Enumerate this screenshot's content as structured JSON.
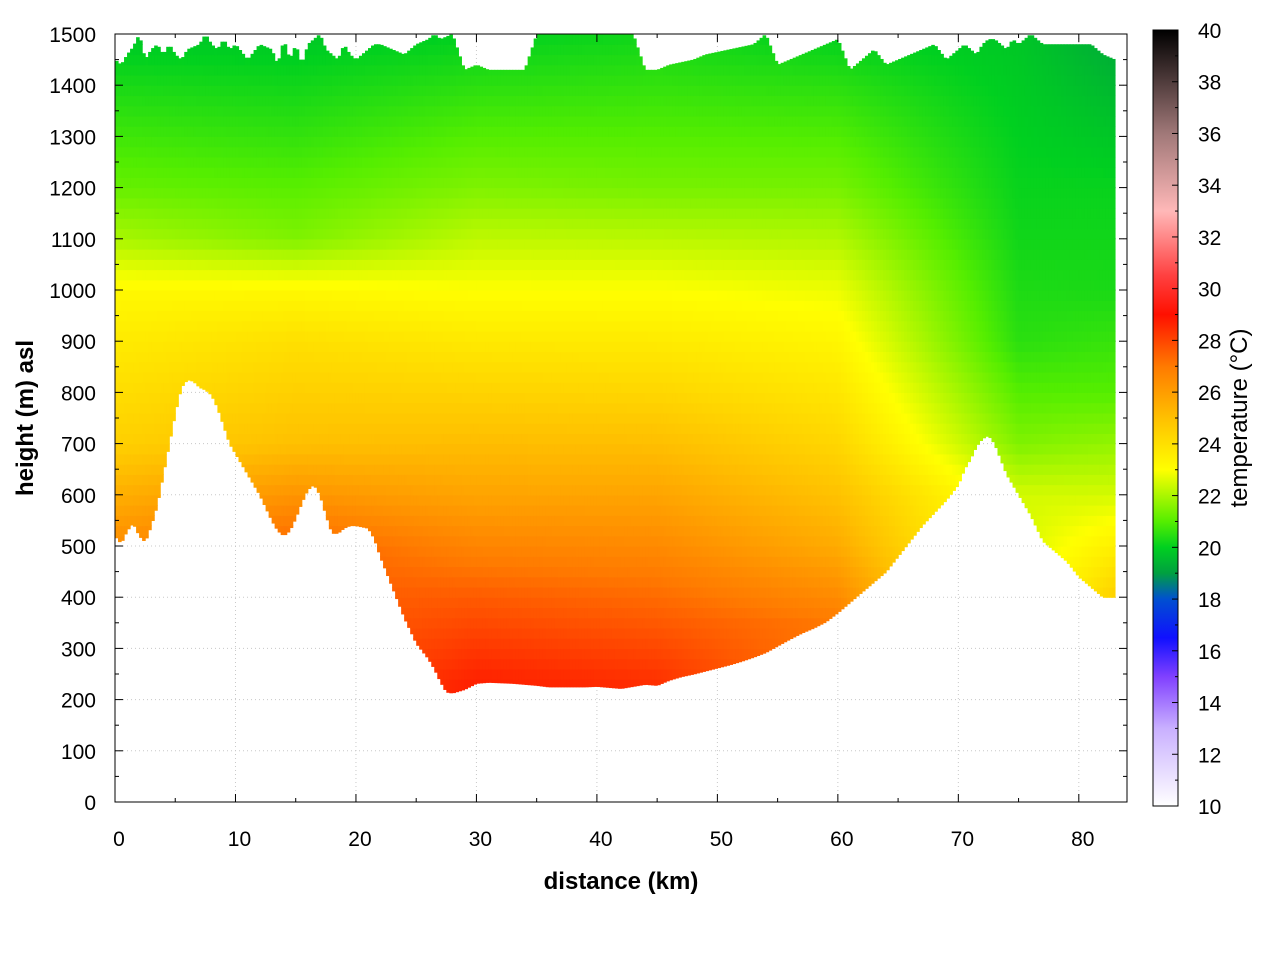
{
  "chart_data": {
    "type": "heatmap",
    "title": "",
    "xlabel": "distance (km)",
    "ylabel": "height (m) asl",
    "xlim": [
      0,
      84
    ],
    "ylim": [
      0,
      1500
    ],
    "x_ticks": [
      0,
      10,
      20,
      30,
      40,
      50,
      60,
      70,
      80
    ],
    "y_ticks": [
      0,
      100,
      200,
      300,
      400,
      500,
      600,
      700,
      800,
      900,
      1000,
      1100,
      1200,
      1300,
      1400,
      1500
    ],
    "grid": true,
    "colorbar": {
      "label": "temperature (°C)",
      "range": [
        10,
        40
      ],
      "ticks": [
        10,
        12,
        14,
        16,
        18,
        20,
        22,
        24,
        26,
        28,
        30,
        32,
        34,
        36,
        38,
        40
      ],
      "stops": [
        {
          "value": 10,
          "color": "#ffffff"
        },
        {
          "value": 13,
          "color": "#c9b0ff"
        },
        {
          "value": 15,
          "color": "#8040ff"
        },
        {
          "value": 16.5,
          "color": "#1010ff"
        },
        {
          "value": 18,
          "color": "#0050d0"
        },
        {
          "value": 19,
          "color": "#00a040"
        },
        {
          "value": 20,
          "color": "#00d020"
        },
        {
          "value": 21,
          "color": "#55ee00"
        },
        {
          "value": 23,
          "color": "#ffff00"
        },
        {
          "value": 25,
          "color": "#ffc000"
        },
        {
          "value": 27,
          "color": "#ff7a00"
        },
        {
          "value": 29,
          "color": "#ff1000"
        },
        {
          "value": 30.5,
          "color": "#ff4040"
        },
        {
          "value": 33,
          "color": "#ffb8b8"
        },
        {
          "value": 36,
          "color": "#a07878"
        },
        {
          "value": 40,
          "color": "#000000"
        }
      ]
    },
    "terrain_profile": {
      "distance_km": [
        0,
        0.5,
        1,
        1.5,
        2,
        2.5,
        3,
        3.5,
        4,
        4.5,
        5,
        5.5,
        6,
        6.5,
        7,
        7.5,
        8,
        8.5,
        9,
        9.5,
        10,
        11,
        12,
        13,
        13.5,
        14,
        14.5,
        15,
        15.5,
        16,
        16.5,
        17,
        17.5,
        18,
        18.5,
        19,
        19.5,
        20,
        21,
        21.5,
        22,
        23,
        24,
        25,
        26,
        26.5,
        27,
        27.5,
        28,
        29,
        30,
        31,
        32,
        33,
        34,
        35,
        36,
        37,
        38,
        39,
        40,
        41,
        42,
        43,
        44,
        45,
        46,
        47,
        48,
        49,
        50,
        51,
        52,
        53,
        54,
        55,
        56,
        57,
        58,
        59,
        60,
        61,
        62,
        63,
        64,
        65,
        66,
        67,
        68,
        69,
        70,
        70.5,
        71,
        71.5,
        72,
        72.5,
        73,
        73.5,
        74,
        74.5,
        75,
        76,
        77,
        78,
        79,
        80,
        81,
        82,
        83
      ],
      "height_m": [
        520,
        505,
        530,
        545,
        520,
        508,
        540,
        580,
        640,
        700,
        760,
        810,
        825,
        822,
        810,
        805,
        795,
        770,
        735,
        700,
        680,
        640,
        600,
        550,
        530,
        520,
        530,
        555,
        585,
        610,
        620,
        600,
        560,
        525,
        525,
        535,
        540,
        540,
        535,
        515,
        480,
        420,
        360,
        310,
        280,
        260,
        235,
        215,
        213,
        220,
        232,
        234,
        233,
        232,
        230,
        228,
        225,
        225,
        225,
        225,
        226,
        224,
        222,
        226,
        230,
        228,
        238,
        245,
        250,
        256,
        262,
        268,
        275,
        283,
        292,
        305,
        318,
        330,
        340,
        352,
        370,
        390,
        410,
        430,
        450,
        480,
        510,
        540,
        565,
        590,
        620,
        650,
        670,
        695,
        710,
        716,
        700,
        670,
        640,
        620,
        600,
        560,
        510,
        490,
        470,
        440,
        420,
        400,
        400
      ],
      "top_edge_m": [
        1450,
        1440,
        1460,
        1475,
        1500,
        1450,
        1470,
        1480,
        1460,
        1480,
        1460,
        1450,
        1470,
        1475,
        1480,
        1500,
        1480,
        1470,
        1490,
        1470,
        1480,
        1450,
        1480,
        1470,
        1440,
        1490,
        1450,
        1480,
        1440,
        1480,
        1490,
        1500,
        1470,
        1460,
        1450,
        1480,
        1460,
        1450,
        1470,
        1480,
        1480,
        1470,
        1460,
        1480,
        1490,
        1500,
        1490,
        1495,
        1500,
        1430,
        1440,
        1430,
        1430,
        1430,
        1430,
        1500,
        1500,
        1500,
        1500,
        1500,
        1500,
        1500,
        1500,
        1500,
        1430,
        1430,
        1440,
        1445,
        1450,
        1460,
        1465,
        1470,
        1475,
        1480,
        1500,
        1440,
        1450,
        1460,
        1470,
        1480,
        1490,
        1430,
        1450,
        1470,
        1440,
        1450,
        1460,
        1470,
        1480,
        1450,
        1470,
        1480,
        1470,
        1460,
        1480,
        1490,
        1490,
        1480,
        1470,
        1490,
        1480,
        1500,
        1480,
        1480,
        1480,
        1480,
        1480,
        1460,
        1450
      ]
    },
    "temperature_field_samples": [
      {
        "distance_km": 0,
        "profile": [
          [
            500,
            26.5
          ],
          [
            700,
            24.5
          ],
          [
            1000,
            23.2
          ],
          [
            1100,
            22
          ],
          [
            1200,
            21.2
          ],
          [
            1400,
            20.3
          ],
          [
            1500,
            19.8
          ]
        ]
      },
      {
        "distance_km": 15,
        "profile": [
          [
            500,
            27.5
          ],
          [
            700,
            25
          ],
          [
            900,
            24
          ],
          [
            1000,
            23.2
          ],
          [
            1100,
            21.5
          ],
          [
            1300,
            20.6
          ],
          [
            1500,
            19.8
          ]
        ]
      },
      {
        "distance_km": 30,
        "profile": [
          [
            220,
            28.8
          ],
          [
            400,
            27.6
          ],
          [
            600,
            25.8
          ],
          [
            800,
            24.4
          ],
          [
            1000,
            23
          ],
          [
            1200,
            21.5
          ],
          [
            1400,
            20.5
          ],
          [
            1500,
            20
          ]
        ]
      },
      {
        "distance_km": 45,
        "profile": [
          [
            220,
            28.5
          ],
          [
            400,
            27.3
          ],
          [
            600,
            25.8
          ],
          [
            800,
            24.3
          ],
          [
            1000,
            23
          ],
          [
            1200,
            21.4
          ],
          [
            1400,
            20.6
          ],
          [
            1500,
            20.2
          ]
        ]
      },
      {
        "distance_km": 60,
        "profile": [
          [
            350,
            27
          ],
          [
            500,
            25.6
          ],
          [
            700,
            24.3
          ],
          [
            900,
            23.3
          ],
          [
            1000,
            22.8
          ],
          [
            1200,
            21.4
          ],
          [
            1400,
            20.5
          ],
          [
            1500,
            20
          ]
        ]
      },
      {
        "distance_km": 75,
        "profile": [
          [
            600,
            22.5
          ],
          [
            700,
            21.5
          ],
          [
            900,
            20.5
          ],
          [
            1100,
            20.2
          ],
          [
            1300,
            20
          ],
          [
            1500,
            19.8
          ]
        ]
      },
      {
        "distance_km": 83,
        "profile": [
          [
            400,
            24.5
          ],
          [
            600,
            22.5
          ],
          [
            800,
            21
          ],
          [
            1000,
            20.3
          ],
          [
            1200,
            20.1
          ],
          [
            1400,
            19.5
          ],
          [
            1500,
            19.2
          ]
        ]
      }
    ]
  }
}
